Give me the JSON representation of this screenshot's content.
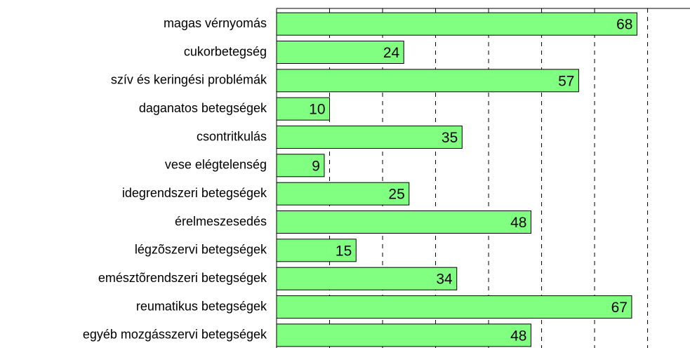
{
  "chart_data": {
    "type": "barh",
    "categories": [
      "magas vérnyomás",
      "cukorbetegség",
      "szív és keringési problémák",
      "daganatos betegségek",
      "csontritkulás",
      "vese elégtelenség",
      "idegrendszeri betegségek",
      "érelmeszesedés",
      "légzõszervi betegségek",
      "emésztõrendszeri betegségek",
      "reumatikus betegségek",
      "egyéb mozgásszervi betegségek"
    ],
    "values": [
      68,
      24,
      57,
      10,
      35,
      9,
      25,
      48,
      15,
      34,
      67,
      48
    ],
    "color": "#80ff80",
    "xlim": [
      0,
      78
    ],
    "xticks": [
      0,
      10,
      20,
      30,
      40,
      50,
      60,
      70
    ],
    "grid": true
  }
}
